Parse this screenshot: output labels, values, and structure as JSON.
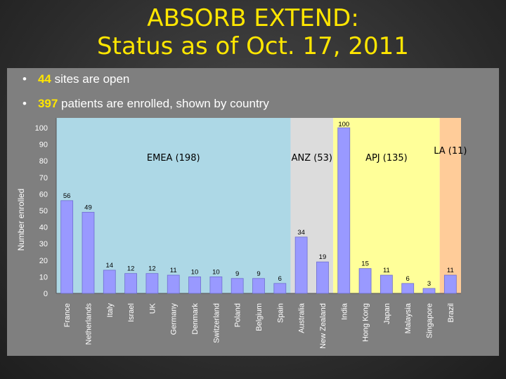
{
  "slide": {
    "title_line1": "ABSORB EXTEND:",
    "title_line2": "Status as of Oct. 17, 2011",
    "bullets": [
      {
        "number": "44",
        "text": " sites are open"
      },
      {
        "number": "397",
        "text": " patients are enrolled, shown by country"
      }
    ]
  },
  "colors": {
    "title": "#ffe600",
    "bar": "#9999ff",
    "region_emea": "#add8e6",
    "region_anz": "#dcdcdc",
    "region_apj": "#ffff99",
    "region_la": "#ffcc99"
  },
  "chart_data": {
    "type": "bar",
    "ylabel": "Number enrolled",
    "ylim": [
      0,
      100
    ],
    "yticks": [
      0,
      10,
      20,
      30,
      40,
      50,
      60,
      70,
      80,
      90,
      100
    ],
    "categories": [
      "France",
      "Netherlands",
      "Italy",
      "Israel",
      "UK",
      "Germany",
      "Denmark",
      "Switzerland",
      "Poland",
      "Belgium",
      "Spain",
      "Australia",
      "New Zealand",
      "India",
      "Hong Kong",
      "Japan",
      "Malaysia",
      "Singapore",
      "Brazil"
    ],
    "values": [
      56,
      49,
      14,
      12,
      12,
      11,
      10,
      10,
      9,
      9,
      6,
      34,
      19,
      100,
      15,
      11,
      6,
      3,
      11
    ],
    "regions": [
      {
        "label": "EMEA (198)",
        "start": 0,
        "end": 10,
        "color": "#add8e6"
      },
      {
        "label": "ANZ (53)",
        "start": 11,
        "end": 12,
        "color": "#dcdcdc"
      },
      {
        "label": "APJ (135)",
        "start": 13,
        "end": 17,
        "color": "#ffff99"
      },
      {
        "label": "LA (11)",
        "start": 18,
        "end": 18,
        "color": "#ffcc99"
      }
    ],
    "grid": false,
    "legend": "none"
  }
}
